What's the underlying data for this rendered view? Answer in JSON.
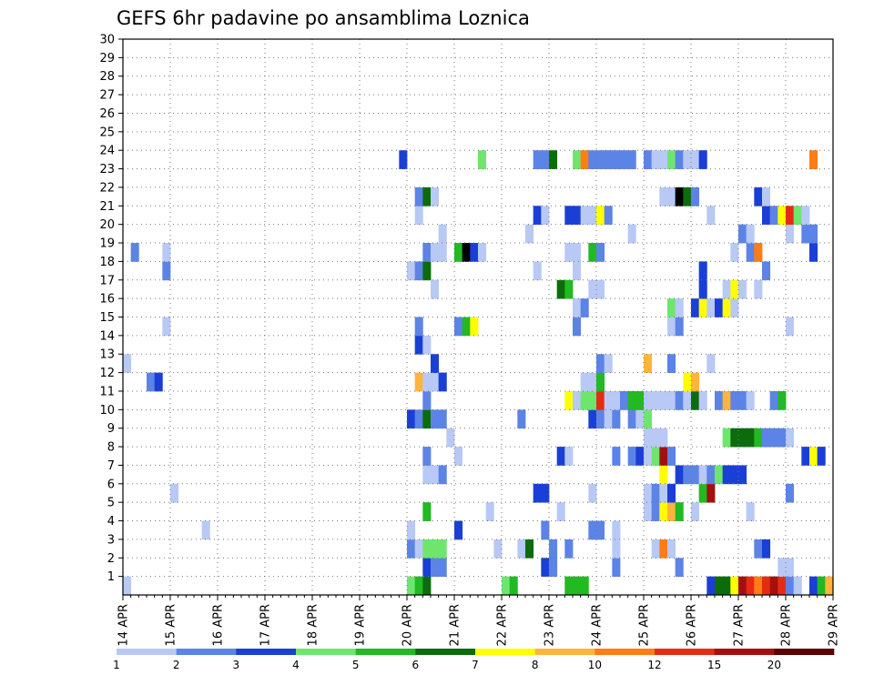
{
  "chart_data": {
    "type": "heatmap",
    "title": "GEFS 6hr padavine po ansamblima Loznica",
    "xlabel": "",
    "ylabel": "",
    "x_tick_labels": [
      "14 APR",
      "15 APR",
      "16 APR",
      "17 APR",
      "18 APR",
      "19 APR",
      "20 APR",
      "21 APR",
      "22 APR",
      "23 APR",
      "24 APR",
      "25 APR",
      "26 APR",
      "27 APR",
      "28 APR",
      "29 APR"
    ],
    "x_range": [
      "14 APR 00Z",
      "29 APR 00Z"
    ],
    "time_step_hours": 6,
    "y_tick_labels": [
      "1",
      "2",
      "3",
      "4",
      "5",
      "6",
      "7",
      "8",
      "9",
      "10",
      "11",
      "12",
      "13",
      "14",
      "15",
      "16",
      "17",
      "18",
      "19",
      "20",
      "21",
      "22",
      "23",
      "24",
      "25",
      "26",
      "27",
      "28",
      "29",
      "30"
    ],
    "y_range": [
      0,
      30
    ],
    "grid": true,
    "colorbar": {
      "levels": [
        "1",
        "2",
        "3",
        "4",
        "5",
        "6",
        "7",
        "8",
        "10",
        "12",
        "15",
        "20"
      ],
      "colors": [
        "#b9c9f5",
        "#5c84e6",
        "#1a3fd6",
        "#6ee66e",
        "#22b922",
        "#0c6c0c",
        "#ffff00",
        "#ffb43c",
        "#ff7d14",
        "#e62b14",
        "#a50f0f",
        "#5a0000"
      ]
    },
    "ensemble_members": [
      {
        "member": 1,
        "cells": [
          [
            0,
            1
          ],
          [
            36,
            4
          ],
          [
            37,
            5
          ],
          [
            38,
            6
          ],
          [
            48,
            4
          ],
          [
            49,
            5
          ],
          [
            56,
            5
          ],
          [
            57,
            5
          ],
          [
            58,
            5
          ],
          [
            74,
            3
          ],
          [
            75,
            6
          ],
          [
            76,
            6
          ],
          [
            77,
            7
          ],
          [
            78,
            11
          ],
          [
            79,
            10
          ],
          [
            80,
            9
          ],
          [
            81,
            10
          ],
          [
            82,
            11
          ],
          [
            83,
            10
          ],
          [
            84,
            2
          ],
          [
            85,
            1
          ],
          [
            87,
            3
          ],
          [
            88,
            5
          ],
          [
            89,
            8
          ]
        ]
      },
      {
        "member": 2,
        "cells": [
          [
            38,
            3
          ],
          [
            39,
            2
          ],
          [
            40,
            2
          ],
          [
            53,
            3
          ],
          [
            54,
            2
          ],
          [
            62,
            2
          ],
          [
            70,
            2
          ],
          [
            83,
            1
          ],
          [
            84,
            1
          ]
        ]
      },
      {
        "member": 3,
        "cells": [
          [
            36,
            2
          ],
          [
            37,
            1
          ],
          [
            38,
            4
          ],
          [
            39,
            4
          ],
          [
            40,
            4
          ],
          [
            47,
            1
          ],
          [
            50,
            1
          ],
          [
            51,
            6
          ],
          [
            54,
            2
          ],
          [
            56,
            2
          ],
          [
            62,
            1
          ],
          [
            67,
            1
          ],
          [
            68,
            9
          ],
          [
            69,
            1
          ],
          [
            80,
            2
          ],
          [
            81,
            3
          ]
        ]
      },
      {
        "member": 4,
        "cells": [
          [
            10,
            1
          ],
          [
            36,
            1
          ],
          [
            42,
            3
          ],
          [
            62,
            1
          ],
          [
            53,
            2
          ],
          [
            59,
            2
          ],
          [
            60,
            2
          ]
        ]
      },
      {
        "member": 5,
        "cells": [
          [
            38,
            5
          ],
          [
            46,
            1
          ],
          [
            55,
            1
          ],
          [
            66,
            1
          ],
          [
            67,
            2
          ],
          [
            68,
            7
          ],
          [
            69,
            8
          ],
          [
            70,
            5
          ],
          [
            72,
            1
          ],
          [
            79,
            1
          ]
        ]
      },
      {
        "member": 6,
        "cells": [
          [
            6,
            1
          ],
          [
            52,
            3
          ],
          [
            53,
            3
          ],
          [
            59,
            1
          ],
          [
            66,
            1
          ],
          [
            67,
            2
          ],
          [
            68,
            1
          ],
          [
            69,
            3
          ],
          [
            73,
            5
          ],
          [
            74,
            11
          ],
          [
            84,
            2
          ]
        ]
      },
      {
        "member": 7,
        "cells": [
          [
            38,
            1
          ],
          [
            39,
            1
          ],
          [
            40,
            2
          ],
          [
            68,
            7
          ],
          [
            70,
            3
          ],
          [
            71,
            2
          ],
          [
            72,
            2
          ],
          [
            73,
            1
          ],
          [
            74,
            2
          ],
          [
            75,
            4
          ],
          [
            76,
            3
          ],
          [
            77,
            3
          ],
          [
            78,
            3
          ]
        ]
      },
      {
        "member": 8,
        "cells": [
          [
            38,
            2
          ],
          [
            42,
            1
          ],
          [
            55,
            3
          ],
          [
            56,
            1
          ],
          [
            62,
            2
          ],
          [
            64,
            2
          ],
          [
            65,
            3
          ],
          [
            66,
            1
          ],
          [
            67,
            4
          ],
          [
            68,
            11
          ],
          [
            69,
            2
          ],
          [
            86,
            3
          ],
          [
            87,
            7
          ],
          [
            88,
            3
          ]
        ]
      },
      {
        "member": 9,
        "cells": [
          [
            41,
            1
          ],
          [
            66,
            1
          ],
          [
            67,
            1
          ],
          [
            68,
            1
          ],
          [
            76,
            4
          ],
          [
            77,
            6
          ],
          [
            78,
            6
          ],
          [
            79,
            6
          ],
          [
            80,
            5
          ],
          [
            81,
            2
          ],
          [
            82,
            2
          ],
          [
            83,
            2
          ],
          [
            84,
            1
          ]
        ]
      },
      {
        "member": 10,
        "cells": [
          [
            36,
            3
          ],
          [
            37,
            2
          ],
          [
            38,
            6
          ],
          [
            39,
            2
          ],
          [
            40,
            2
          ],
          [
            50,
            2
          ],
          [
            59,
            3
          ],
          [
            60,
            2
          ],
          [
            61,
            1
          ],
          [
            62,
            2
          ],
          [
            64,
            2
          ],
          [
            65,
            1
          ],
          [
            66,
            4
          ]
        ]
      },
      {
        "member": 11,
        "cells": [
          [
            38,
            2
          ],
          [
            56,
            7
          ],
          [
            57,
            1
          ],
          [
            58,
            4
          ],
          [
            59,
            4
          ],
          [
            60,
            10
          ],
          [
            61,
            1
          ],
          [
            62,
            1
          ],
          [
            63,
            2
          ],
          [
            64,
            5
          ],
          [
            65,
            5
          ],
          [
            66,
            1
          ],
          [
            67,
            1
          ],
          [
            68,
            1
          ],
          [
            69,
            1
          ],
          [
            70,
            2
          ],
          [
            71,
            1
          ],
          [
            72,
            6
          ],
          [
            73,
            1
          ],
          [
            75,
            2
          ],
          [
            76,
            8
          ],
          [
            77,
            2
          ],
          [
            78,
            2
          ],
          [
            79,
            1
          ],
          [
            82,
            2
          ],
          [
            83,
            5
          ]
        ]
      },
      {
        "member": 12,
        "cells": [
          [
            3,
            2
          ],
          [
            4,
            3
          ],
          [
            37,
            8
          ],
          [
            38,
            1
          ],
          [
            39,
            1
          ],
          [
            40,
            3
          ],
          [
            58,
            1
          ],
          [
            59,
            1
          ],
          [
            60,
            5
          ],
          [
            71,
            7
          ],
          [
            72,
            8
          ]
        ]
      },
      {
        "member": 13,
        "cells": [
          [
            0,
            1
          ],
          [
            39,
            3
          ],
          [
            60,
            2
          ],
          [
            61,
            1
          ],
          [
            66,
            8
          ],
          [
            69,
            2
          ],
          [
            74,
            1
          ]
        ]
      },
      {
        "member": 14,
        "cells": [
          [
            37,
            3
          ],
          [
            38,
            1
          ]
        ]
      },
      {
        "member": 15,
        "cells": [
          [
            5,
            1
          ],
          [
            37,
            2
          ],
          [
            42,
            2
          ],
          [
            43,
            5
          ],
          [
            44,
            7
          ],
          [
            57,
            2
          ],
          [
            69,
            1
          ],
          [
            70,
            2
          ],
          [
            84,
            1
          ]
        ]
      },
      {
        "member": 16,
        "cells": [
          [
            57,
            1
          ],
          [
            58,
            2
          ],
          [
            69,
            4
          ],
          [
            70,
            1
          ],
          [
            72,
            3
          ],
          [
            73,
            7
          ],
          [
            74,
            1
          ],
          [
            75,
            3
          ],
          [
            76,
            7
          ],
          [
            77,
            1
          ]
        ]
      },
      {
        "member": 17,
        "cells": [
          [
            39,
            1
          ],
          [
            55,
            6
          ],
          [
            56,
            5
          ],
          [
            59,
            1
          ],
          [
            60,
            1
          ],
          [
            73,
            3
          ],
          [
            76,
            1
          ],
          [
            77,
            7
          ],
          [
            78,
            1
          ],
          [
            80,
            1
          ]
        ]
      },
      {
        "member": 18,
        "cells": [
          [
            5,
            2
          ],
          [
            36,
            1
          ],
          [
            37,
            2
          ],
          [
            38,
            6
          ],
          [
            52,
            1
          ],
          [
            57,
            1
          ],
          [
            73,
            3
          ],
          [
            81,
            2
          ]
        ]
      },
      {
        "member": 19,
        "cells": [
          [
            1,
            2
          ],
          [
            5,
            1
          ],
          [
            38,
            2
          ],
          [
            39,
            1
          ],
          [
            40,
            1
          ],
          [
            42,
            5
          ],
          [
            43,
            15
          ],
          [
            44,
            3
          ],
          [
            45,
            1
          ],
          [
            56,
            1
          ],
          [
            57,
            1
          ],
          [
            59,
            5
          ],
          [
            60,
            2
          ],
          [
            77,
            1
          ],
          [
            79,
            2
          ],
          [
            80,
            9
          ],
          [
            87,
            3
          ]
        ]
      },
      {
        "member": 20,
        "cells": [
          [
            40,
            1
          ],
          [
            51,
            1
          ],
          [
            64,
            1
          ],
          [
            78,
            2
          ],
          [
            79,
            1
          ],
          [
            84,
            1
          ],
          [
            86,
            2
          ],
          [
            87,
            2
          ]
        ]
      },
      {
        "member": 21,
        "cells": [
          [
            37,
            1
          ],
          [
            52,
            3
          ],
          [
            53,
            1
          ],
          [
            56,
            3
          ],
          [
            57,
            3
          ],
          [
            58,
            1
          ],
          [
            59,
            1
          ],
          [
            60,
            7
          ],
          [
            61,
            2
          ],
          [
            74,
            1
          ],
          [
            81,
            3
          ],
          [
            82,
            2
          ],
          [
            83,
            7
          ],
          [
            84,
            10
          ],
          [
            85,
            4
          ],
          [
            86,
            1
          ]
        ]
      },
      {
        "member": 22,
        "cells": [
          [
            37,
            2
          ],
          [
            38,
            6
          ],
          [
            39,
            1
          ],
          [
            68,
            1
          ],
          [
            69,
            1
          ],
          [
            70,
            20
          ],
          [
            71,
            6
          ],
          [
            72,
            2
          ],
          [
            80,
            3
          ],
          [
            81,
            1
          ]
        ]
      },
      {
        "member": 24,
        "cells": [
          [
            35,
            3
          ],
          [
            45,
            4
          ],
          [
            52,
            2
          ],
          [
            53,
            2
          ],
          [
            54,
            6
          ],
          [
            57,
            4
          ],
          [
            58,
            9
          ],
          [
            59,
            2
          ],
          [
            60,
            2
          ],
          [
            61,
            2
          ],
          [
            62,
            2
          ],
          [
            63,
            2
          ],
          [
            64,
            2
          ],
          [
            66,
            2
          ],
          [
            67,
            1
          ],
          [
            68,
            1
          ],
          [
            69,
            4
          ],
          [
            70,
            2
          ],
          [
            71,
            1
          ],
          [
            72,
            1
          ],
          [
            73,
            3
          ],
          [
            87,
            9
          ]
        ]
      }
    ]
  },
  "colorbar_labels": [
    "1",
    "2",
    "3",
    "4",
    "5",
    "6",
    "7",
    "8",
    "10",
    "12",
    "15",
    "20"
  ]
}
